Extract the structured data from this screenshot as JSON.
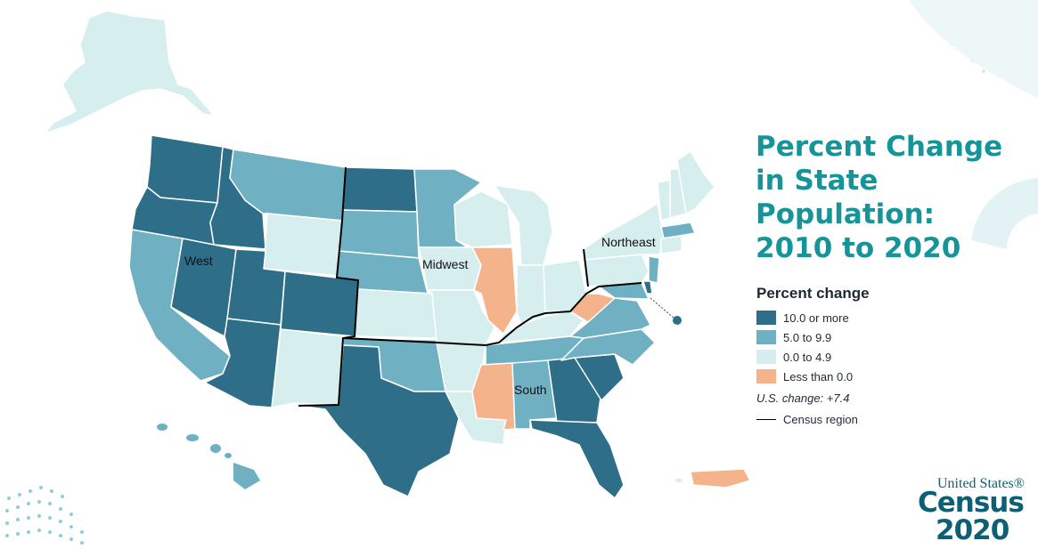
{
  "title_lines": [
    "Percent Change",
    "in State",
    "Population:",
    "2010 to 2020"
  ],
  "legend": {
    "title": "Percent change",
    "items": [
      {
        "label": "10.0 or more",
        "color": "#2e6e89"
      },
      {
        "label": "5.0 to 9.9",
        "color": "#6fb1c3"
      },
      {
        "label": "0.0 to 4.9",
        "color": "#d6eeee"
      },
      {
        "label": "Less than 0.0",
        "color": "#f5b38b"
      }
    ],
    "us_change": "U.S. change: +7.4",
    "region_line_label": "Census region"
  },
  "regions": [
    "West",
    "Midwest",
    "Northeast",
    "South"
  ],
  "logo": {
    "line1": "United States®",
    "line2": "Census",
    "line3": "2020"
  },
  "colors": {
    "title": "#15949a",
    "dark": "#2e6e89",
    "mid": "#6fb1c3",
    "light": "#d6eeee",
    "neg": "#f5b38b",
    "border": "#ffffff",
    "dots": "#8fcfd8"
  }
}
